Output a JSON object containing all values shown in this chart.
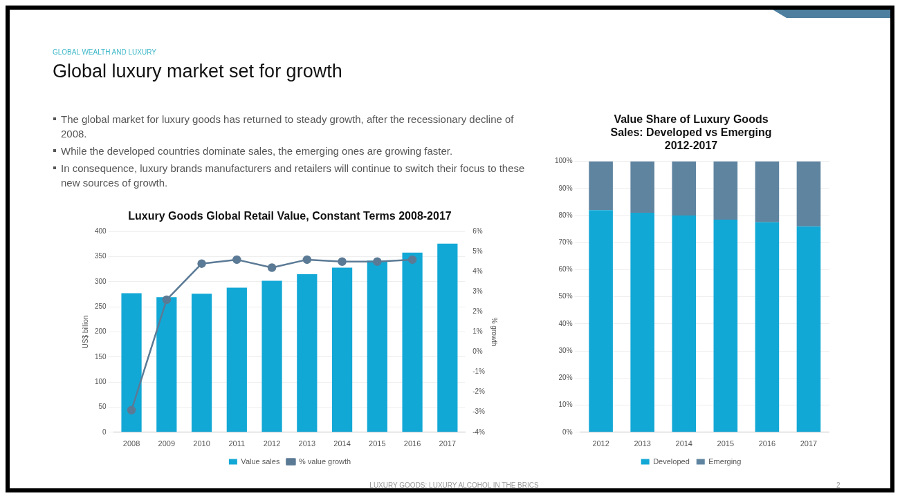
{
  "chart_data": [
    {
      "type": "other",
      "subtitle": "GLOBAL WEALTH AND LUXURY",
      "title": "Global luxury market set for growth",
      "annotations": [
        "The global market for luxury goods has returned to steady growth, after the recessionary decline of 2008.",
        "While the developed countries dominate sales, the emerging ones are growing faster.",
        "In consequence, luxury brands manufacturers and retailers will continue to switch their focus to these new sources of growth.",
        "LUXURY GOODS: LUXURY ALCOHOL IN THE BRICS",
        "2"
      ]
    },
    {
      "type": "bar",
      "title": "Luxury Goods Global Retail Value, Constant Terms 2008-2017",
      "ylabel": "US$ billion",
      "y2label": "% growth",
      "categories": [
        "2008",
        "2009",
        "2010",
        "2011",
        "2012",
        "2013",
        "2014",
        "2015",
        "2016",
        "2017"
      ],
      "series": [
        {
          "name": "Value sales",
          "color": "#12a8d6",
          "values": [
            277,
            269,
            276,
            288,
            302,
            315,
            328,
            342,
            358,
            376
          ]
        },
        {
          "name": "% value growth",
          "type": "line",
          "axis": "y2",
          "color": "#5b7a95",
          "marker": "circle",
          "values": [
            -2.9,
            2.6,
            4.4,
            4.6,
            4.2,
            4.6,
            4.5,
            4.5,
            4.6,
            null
          ]
        }
      ],
      "ylim": [
        0,
        400
      ],
      "yticks": [
        0,
        50,
        100,
        150,
        200,
        250,
        300,
        350,
        400
      ],
      "y2lim": [
        -4,
        6
      ],
      "y2ticks": [
        {
          "value": -4,
          "label": "-4%"
        },
        {
          "value": -3,
          "label": "-3%"
        },
        {
          "value": -2,
          "label": "-2%"
        },
        {
          "value": -1,
          "label": "-1%"
        },
        {
          "value": 0,
          "label": "0%"
        },
        {
          "value": 1,
          "label": "1%"
        },
        {
          "value": 2,
          "label": "2%"
        },
        {
          "value": 3,
          "label": "3%"
        },
        {
          "value": 4,
          "label": "4%"
        },
        {
          "value": 5,
          "label": "5%"
        },
        {
          "value": 6,
          "label": "6%"
        }
      ],
      "grid": "y",
      "legend": "bottom"
    },
    {
      "type": "bar",
      "title": "Value Share of Luxury Goods Sales: Developed vs Emerging 2012-2017",
      "stacked": true,
      "categories": [
        "2012",
        "2013",
        "2014",
        "2015",
        "2016",
        "2017"
      ],
      "series": [
        {
          "name": "Developed",
          "color": "#12a8d6",
          "values": [
            82,
            81,
            80,
            78.5,
            77.5,
            76
          ]
        },
        {
          "name": "Emerging",
          "color": "#5f84a0",
          "values": [
            18,
            19,
            20,
            21.5,
            22.5,
            24
          ]
        }
      ],
      "ylim": [
        0,
        100
      ],
      "yticks": [
        {
          "value": 0,
          "label": "0%"
        },
        {
          "value": 10,
          "label": "10%"
        },
        {
          "value": 20,
          "label": "20%"
        },
        {
          "value": 30,
          "label": "30%"
        },
        {
          "value": 40,
          "label": "40%"
        },
        {
          "value": 50,
          "label": "50%"
        },
        {
          "value": 60,
          "label": "60%"
        },
        {
          "value": 70,
          "label": "70%"
        },
        {
          "value": 80,
          "label": "80%"
        },
        {
          "value": 90,
          "label": "90%"
        },
        {
          "value": 100,
          "label": "100%"
        }
      ],
      "grid": "y",
      "legend": "bottom"
    }
  ]
}
